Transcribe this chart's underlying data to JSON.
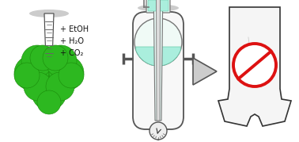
{
  "bg_color": "#ffffff",
  "tree_trunk_color": "#ffffff",
  "tree_trunk_stroke": "#444444",
  "tree_foliage_color": "#2db820",
  "tree_foliage_stroke": "#1a8a0a",
  "tree_shadow_color": "#aaaaaa",
  "text_labels": [
    "+ EtOH",
    "+ H₂O",
    "+ CO₂"
  ],
  "text_color": "#111111",
  "text_fontsize": 7.0,
  "vessel_fill": "#f8f8f8",
  "vessel_stroke": "#555555",
  "liquid_color": "#aaeedd",
  "liquid_stroke": "#66ccaa",
  "flask_fill": "#f0faf6",
  "gauge_fill": "#eeeeee",
  "gauge_stroke": "#555555",
  "arrow_fill": "#cccccc",
  "arrow_stroke": "#555555",
  "shirt_fill": "#f5f5f5",
  "shirt_stroke": "#333333",
  "no_symbol_color": "#dd1111",
  "cotton_fill": "#dddddd",
  "cotton_stroke": "#222222",
  "soxhlet_fill": "#e8f8f4",
  "soxhlet_stroke": "#777777"
}
